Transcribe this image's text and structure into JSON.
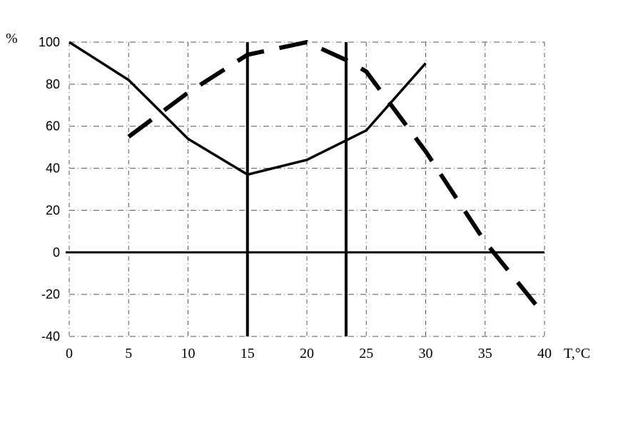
{
  "chart_data": {
    "type": "line",
    "title": "",
    "xlabel": "T,°C",
    "ylabel": "%",
    "xlim": [
      0,
      40
    ],
    "ylim": [
      -40,
      100
    ],
    "x_ticks": [
      0,
      5,
      10,
      15,
      20,
      25,
      30,
      35,
      40
    ],
    "y_ticks": [
      100,
      80,
      60,
      40,
      20,
      0,
      -20,
      -40
    ],
    "grid": true,
    "legend": "none",
    "series": [
      {
        "style": "solid",
        "color": "#000000",
        "x": [
          0,
          5,
          10,
          15,
          20,
          25,
          30
        ],
        "y": [
          100,
          82,
          54,
          37,
          44,
          58,
          90
        ]
      },
      {
        "style": "dashed",
        "color": "#000000",
        "x": [
          5,
          10,
          15,
          20,
          23.5,
          25,
          30,
          35,
          40
        ],
        "y": [
          55,
          76,
          94,
          100,
          91,
          86,
          48,
          5,
          -30
        ]
      }
    ],
    "vertical_lines": [
      15,
      23.3
    ],
    "horizontal_lines": [
      0
    ]
  }
}
